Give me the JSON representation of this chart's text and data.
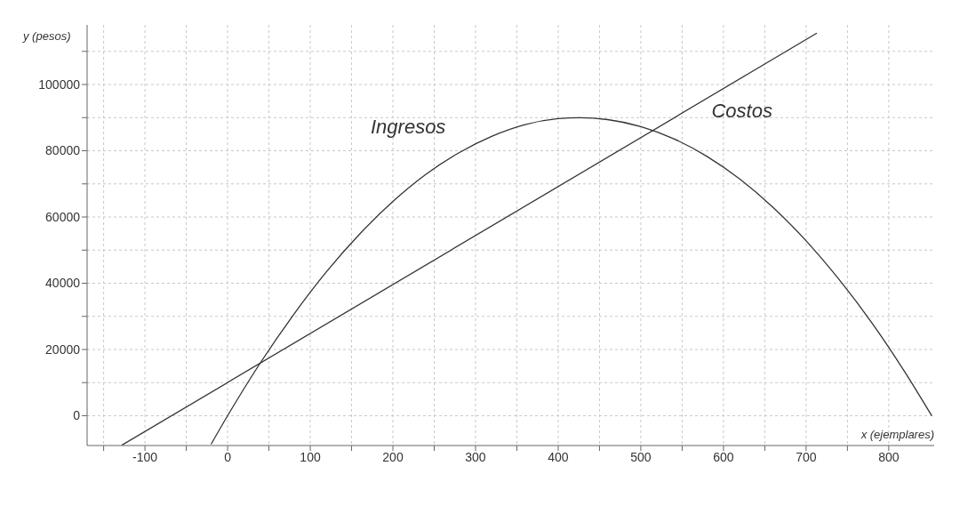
{
  "chart_data": {
    "type": "line",
    "xlabel": "x (ejemplares)",
    "ylabel": "y (pesos)",
    "xlim": [
      -170,
      855
    ],
    "ylim": [
      -9000,
      118000
    ],
    "xticks": [
      {
        "value": -150,
        "label": null
      },
      -100,
      {
        "value": -50,
        "label": null
      },
      0,
      {
        "value": 50,
        "label": null
      },
      100,
      {
        "value": 150,
        "label": null
      },
      200,
      {
        "value": 250,
        "label": null
      },
      300,
      {
        "value": 350,
        "label": null
      },
      400,
      {
        "value": 450,
        "label": null
      },
      500,
      {
        "value": 550,
        "label": null
      },
      600,
      {
        "value": 650,
        "label": null
      },
      700,
      {
        "value": 750,
        "label": null
      },
      800
    ],
    "yticks": [
      0,
      {
        "value": 10000,
        "label": null
      },
      20000,
      {
        "value": 30000,
        "label": null
      },
      40000,
      {
        "value": 50000,
        "label": null
      },
      60000,
      {
        "value": 70000,
        "label": null
      },
      80000,
      {
        "value": 90000,
        "label": null
      },
      100000,
      {
        "value": 110000,
        "label": null
      }
    ],
    "grid": true,
    "marker": "none",
    "line_style": "solid",
    "series": [
      {
        "name": "Ingresos",
        "color": "#333333",
        "x": [
          -20,
          0,
          40,
          80,
          120,
          160,
          200,
          240,
          280,
          320,
          360,
          400,
          426,
          460,
          500,
          540,
          580,
          620,
          660,
          700,
          740,
          780,
          820,
          852
        ],
        "values": [
          -8600,
          0,
          16100,
          30600,
          43600,
          54900,
          64700,
          72900,
          79400,
          84400,
          87900,
          89700,
          90000,
          89400,
          87300,
          83600,
          78300,
          71400,
          62900,
          52800,
          41100,
          27900,
          13000,
          0
        ]
      },
      {
        "name": "Costos",
        "color": "#333333",
        "x": [
          -128,
          713
        ],
        "values": [
          -8900,
          115500
        ]
      }
    ]
  }
}
